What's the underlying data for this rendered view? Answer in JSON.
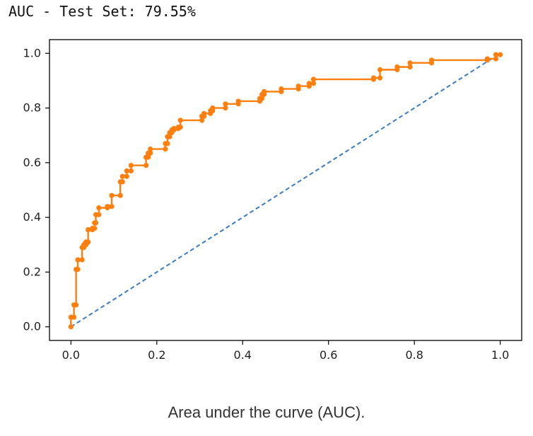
{
  "header": {
    "text": "AUC - Test Set: 79.55%"
  },
  "caption": "Area under the curve (AUC).",
  "colors": {
    "roc": "#ff7f0e",
    "diagonal": "#3b7cc4",
    "axis": "#000000"
  },
  "chart_data": {
    "type": "line",
    "title": "",
    "xlabel": "",
    "ylabel": "",
    "xlim": [
      -0.05,
      1.05
    ],
    "ylim": [
      -0.05,
      1.05
    ],
    "grid": false,
    "x_ticks": [
      0.0,
      0.2,
      0.4,
      0.6,
      0.8,
      1.0
    ],
    "y_ticks": [
      0.0,
      0.2,
      0.4,
      0.6,
      0.8,
      1.0
    ],
    "series": [
      {
        "style": "solid",
        "marker": "dot",
        "x": [
          0.0,
          0.0,
          0.007,
          0.007,
          0.012,
          0.012,
          0.016,
          0.016,
          0.026,
          0.026,
          0.03,
          0.03,
          0.035,
          0.035,
          0.04,
          0.04,
          0.05,
          0.05,
          0.055,
          0.055,
          0.058,
          0.058,
          0.065,
          0.065,
          0.085,
          0.085,
          0.095,
          0.095,
          0.115,
          0.115,
          0.12,
          0.12,
          0.13,
          0.13,
          0.14,
          0.14,
          0.175,
          0.175,
          0.18,
          0.18,
          0.185,
          0.185,
          0.22,
          0.22,
          0.225,
          0.225,
          0.23,
          0.23,
          0.235,
          0.235,
          0.24,
          0.24,
          0.25,
          0.25,
          0.255,
          0.255,
          0.305,
          0.305,
          0.31,
          0.31,
          0.325,
          0.325,
          0.33,
          0.33,
          0.36,
          0.36,
          0.39,
          0.39,
          0.44,
          0.44,
          0.445,
          0.445,
          0.45,
          0.45,
          0.49,
          0.49,
          0.53,
          0.53,
          0.555,
          0.555,
          0.565,
          0.565,
          0.705,
          0.705,
          0.72,
          0.72,
          0.76,
          0.76,
          0.79,
          0.79,
          0.84,
          0.84,
          0.97,
          0.97,
          0.99,
          0.99,
          1.0
        ],
        "y": [
          0.0,
          0.035,
          0.035,
          0.08,
          0.08,
          0.21,
          0.21,
          0.245,
          0.245,
          0.29,
          0.29,
          0.3,
          0.3,
          0.31,
          0.31,
          0.355,
          0.355,
          0.36,
          0.36,
          0.38,
          0.38,
          0.41,
          0.41,
          0.435,
          0.435,
          0.44,
          0.44,
          0.48,
          0.48,
          0.53,
          0.53,
          0.55,
          0.55,
          0.57,
          0.57,
          0.59,
          0.59,
          0.62,
          0.62,
          0.635,
          0.635,
          0.65,
          0.65,
          0.67,
          0.67,
          0.695,
          0.695,
          0.71,
          0.71,
          0.72,
          0.72,
          0.725,
          0.725,
          0.73,
          0.73,
          0.755,
          0.755,
          0.77,
          0.77,
          0.78,
          0.78,
          0.79,
          0.79,
          0.8,
          0.8,
          0.815,
          0.815,
          0.825,
          0.825,
          0.835,
          0.835,
          0.85,
          0.85,
          0.86,
          0.86,
          0.87,
          0.87,
          0.88,
          0.88,
          0.89,
          0.89,
          0.905,
          0.905,
          0.91,
          0.91,
          0.94,
          0.94,
          0.95,
          0.95,
          0.965,
          0.965,
          0.975,
          0.975,
          0.98,
          0.98,
          0.995,
          0.995
        ]
      },
      {
        "style": "dashed",
        "marker": "none",
        "x": [
          0.0,
          1.0
        ],
        "y": [
          0.0,
          1.0
        ]
      }
    ]
  }
}
